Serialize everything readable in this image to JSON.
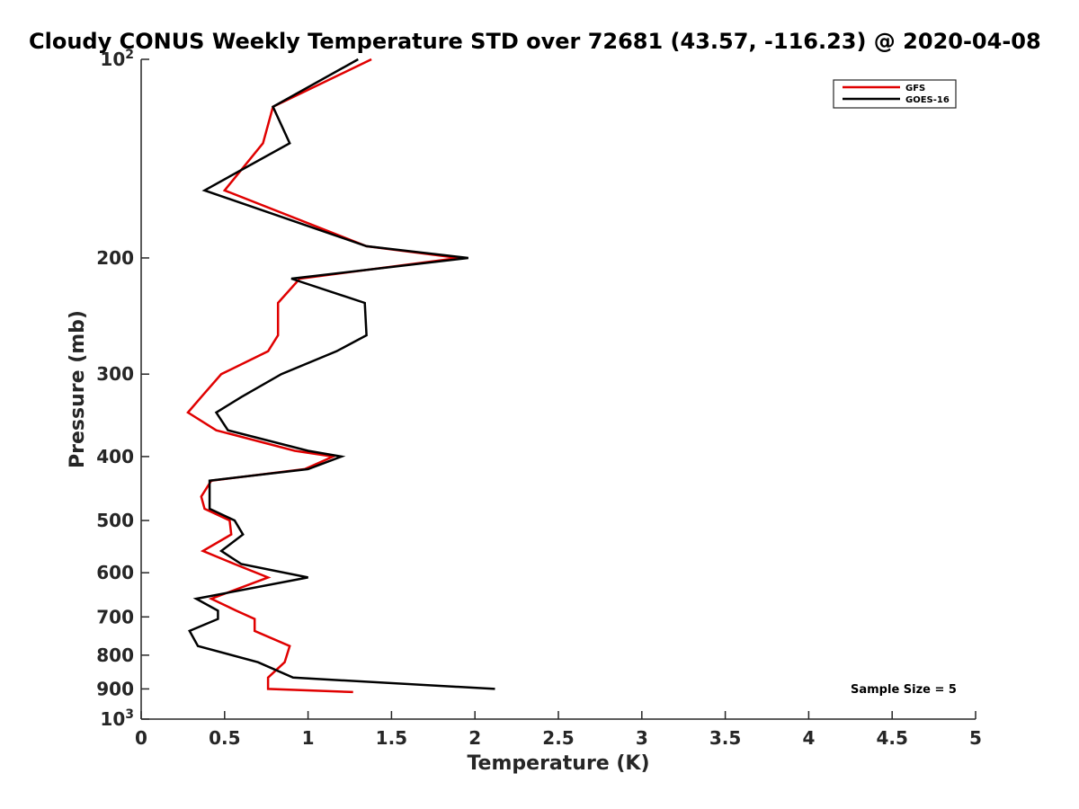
{
  "chart_data": {
    "type": "line",
    "title": "Cloudy CONUS Weekly Temperature STD over 72681 (43.57, -116.23) @ 2020-04-08",
    "xlabel": "Temperature (K)",
    "ylabel": "Pressure (mb)",
    "xlim": [
      0,
      5
    ],
    "ylim": [
      100,
      1000
    ],
    "y_scale": "log",
    "y_reversed": true,
    "x_ticks": [
      "0",
      "0.5",
      "1",
      "1.5",
      "2",
      "2.5",
      "3",
      "3.5",
      "4",
      "4.5",
      "5"
    ],
    "x_tick_values": [
      0,
      0.5,
      1,
      1.5,
      2,
      2.5,
      3,
      3.5,
      4,
      4.5,
      5
    ],
    "y_ticks": [
      {
        "value": 100,
        "base": "10",
        "exp": "2"
      },
      {
        "value": 200,
        "label": "200"
      },
      {
        "value": 300,
        "label": "300"
      },
      {
        "value": 400,
        "label": "400"
      },
      {
        "value": 500,
        "label": "500"
      },
      {
        "value": 600,
        "label": "600"
      },
      {
        "value": 700,
        "label": "700"
      },
      {
        "value": 800,
        "label": "800"
      },
      {
        "value": 900,
        "label": "900"
      },
      {
        "value": 1000,
        "base": "10",
        "exp": "3"
      }
    ],
    "grid": false,
    "legend_position": "top-right",
    "annotation": "Sample Size = 5",
    "series": [
      {
        "name": "GFS",
        "color": "#e00000",
        "points": [
          [
            1.38,
            100
          ],
          [
            0.79,
            118
          ],
          [
            0.73,
            134
          ],
          [
            0.5,
            158
          ],
          [
            1.35,
            192
          ],
          [
            1.9,
            200
          ],
          [
            0.95,
            215
          ],
          [
            0.82,
            234
          ],
          [
            0.82,
            262
          ],
          [
            0.76,
            277
          ],
          [
            0.48,
            300
          ],
          [
            0.36,
            325
          ],
          [
            0.28,
            343
          ],
          [
            0.45,
            365
          ],
          [
            0.92,
            392
          ],
          [
            1.15,
            400
          ],
          [
            0.98,
            418
          ],
          [
            0.42,
            435
          ],
          [
            0.36,
            460
          ],
          [
            0.38,
            480
          ],
          [
            0.53,
            500
          ],
          [
            0.54,
            525
          ],
          [
            0.37,
            556
          ],
          [
            0.56,
            582
          ],
          [
            0.76,
            610
          ],
          [
            0.42,
            657
          ],
          [
            0.57,
            685
          ],
          [
            0.68,
            705
          ],
          [
            0.68,
            735
          ],
          [
            0.89,
            775
          ],
          [
            0.86,
            820
          ],
          [
            0.76,
            865
          ],
          [
            0.76,
            900
          ],
          [
            1.27,
            910
          ]
        ]
      },
      {
        "name": "GOES-16",
        "color": "#000000",
        "points": [
          [
            1.3,
            100
          ],
          [
            0.79,
            118
          ],
          [
            0.89,
            134
          ],
          [
            0.38,
            158
          ],
          [
            1.35,
            192
          ],
          [
            1.96,
            200
          ],
          [
            0.9,
            215
          ],
          [
            1.34,
            234
          ],
          [
            1.35,
            262
          ],
          [
            1.17,
            277
          ],
          [
            0.84,
            300
          ],
          [
            0.6,
            325
          ],
          [
            0.45,
            343
          ],
          [
            0.52,
            365
          ],
          [
            1.0,
            392
          ],
          [
            1.2,
            400
          ],
          [
            1.0,
            418
          ],
          [
            0.41,
            435
          ],
          [
            0.41,
            460
          ],
          [
            0.41,
            480
          ],
          [
            0.56,
            500
          ],
          [
            0.61,
            525
          ],
          [
            0.48,
            556
          ],
          [
            0.6,
            582
          ],
          [
            1.0,
            610
          ],
          [
            0.33,
            657
          ],
          [
            0.46,
            685
          ],
          [
            0.46,
            705
          ],
          [
            0.29,
            735
          ],
          [
            0.34,
            775
          ],
          [
            0.7,
            820
          ],
          [
            0.91,
            865
          ],
          [
            2.12,
            900
          ]
        ]
      }
    ]
  }
}
